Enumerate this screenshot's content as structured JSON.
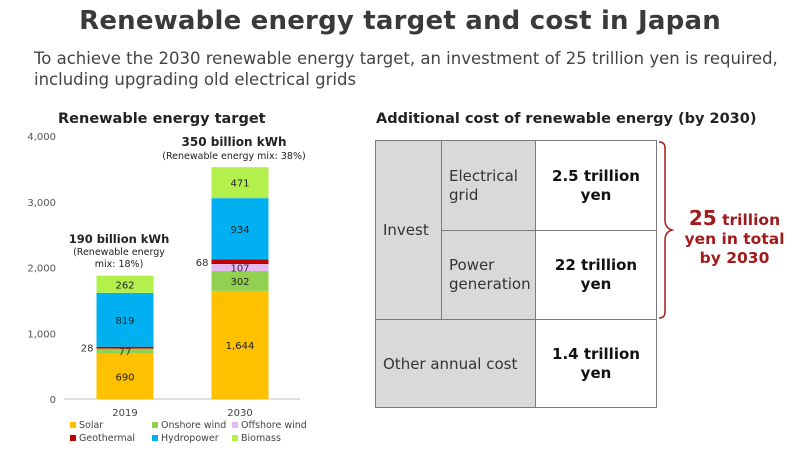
{
  "title": "Renewable energy target and cost in Japan",
  "subtitle": "To achieve the 2030 renewable energy target, an investment of 25 trillion yen is required, including upgrading old electrical grids",
  "chart_data": {
    "type": "bar",
    "stacked": true,
    "title": "Renewable energy target",
    "categories": [
      "2019",
      "2030"
    ],
    "yticks": [
      "0",
      "1,000",
      "2,000",
      "3,000",
      "4,000"
    ],
    "ylim": [
      0,
      4000
    ],
    "series": [
      {
        "name": "Solar",
        "color": "#ffc000",
        "values": [
          690,
          1644
        ],
        "labels": [
          "690",
          "1,644"
        ]
      },
      {
        "name": "Onshore wind",
        "color": "#92d050",
        "values": [
          77,
          302
        ],
        "labels": [
          "77",
          "302"
        ]
      },
      {
        "name": "Offshore wind",
        "color": "#e4b8f0",
        "values": [
          0,
          107
        ],
        "labels": [
          "",
          "107"
        ]
      },
      {
        "name": "Geothermal",
        "color": "#c00000",
        "values": [
          28,
          68
        ],
        "labels": [
          "28",
          "68"
        ]
      },
      {
        "name": "Hydropower",
        "color": "#00b0f0",
        "values": [
          819,
          934
        ],
        "labels": [
          "819",
          "934"
        ]
      },
      {
        "name": "Biomass",
        "color": "#b3f04c",
        "values": [
          262,
          471
        ],
        "labels": [
          "262",
          "471"
        ]
      }
    ],
    "annotations": [
      {
        "category": "2019",
        "lines": [
          "190 billion kWh",
          "(Renewable energy",
          "mix: 18%)"
        ]
      },
      {
        "category": "2030",
        "lines": [
          "350 billion kWh",
          "(Renewable energy mix: 38%)"
        ]
      }
    ],
    "legend_position": "bottom"
  },
  "table": {
    "title": "Additional cost of renewable energy (by 2030)",
    "invest_label": "Invest",
    "grid_label": "Electrical grid",
    "grid_value": "2.5 trillion yen",
    "power_label": "Power generation",
    "power_value": "22 trillion yen",
    "other_label": "Other annual cost",
    "other_value": "1.4 trillion yen"
  },
  "total": {
    "number": "25",
    "unit": "trillion",
    "line2": "yen in total",
    "line3": "by 2030",
    "color": "#a01c1c"
  }
}
